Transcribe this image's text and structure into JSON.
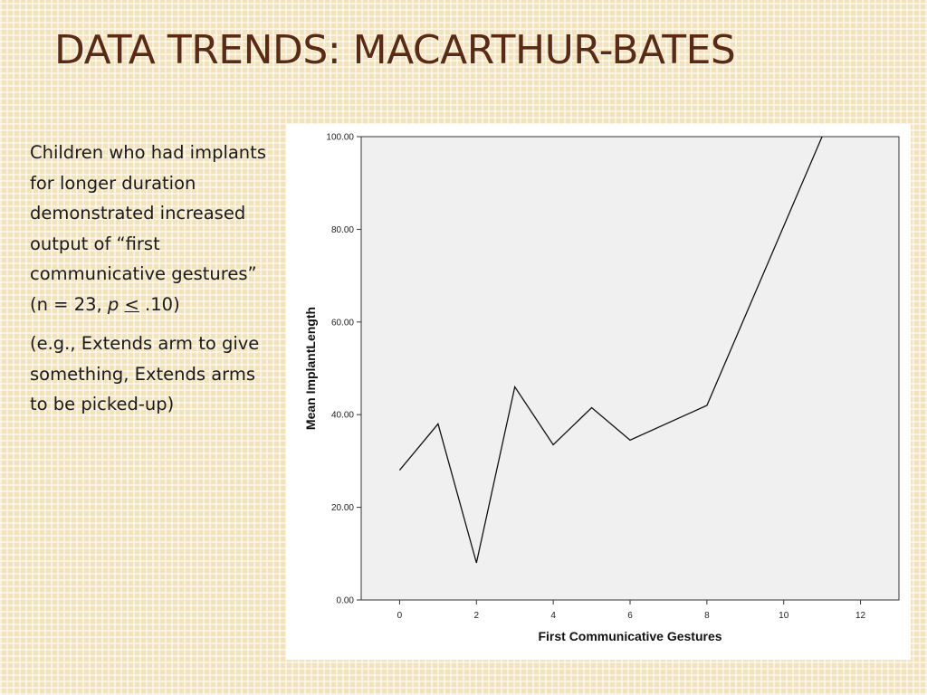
{
  "slide": {
    "title": "DATA TRENDS: MACARTHUR-BATES",
    "paragraph1": {
      "text": "Children who had implants for longer duration demonstrated increased output of “first communicative gestures” (n = 23, ",
      "p_symbol": "p",
      "le_symbol": "<",
      "tail": " .10)"
    },
    "paragraph2": "(e.g., Extends arm to give something, Extends arms to be picked-up)"
  },
  "chart_data": {
    "type": "line",
    "xlabel": "First Communicative Gestures",
    "ylabel": "Mean ImplantLength",
    "xlim": [
      -1,
      13
    ],
    "ylim": [
      0,
      100
    ],
    "x_ticks": [
      0,
      2,
      4,
      6,
      8,
      10,
      12
    ],
    "y_ticks": [
      0,
      20,
      40,
      60,
      80,
      100
    ],
    "y_tick_labels": [
      "0.00",
      "20.00",
      "40.00",
      "60.00",
      "80.00",
      "100.00"
    ],
    "grid": false,
    "series": [
      {
        "x": [
          0,
          1,
          2,
          3,
          4,
          5,
          6,
          8,
          11
        ],
        "y": [
          28,
          38,
          8,
          46,
          33.5,
          41.5,
          34.5,
          42,
          100
        ]
      }
    ],
    "colors": {
      "plot_background": "#f0f0f0",
      "line": "#111111"
    }
  }
}
